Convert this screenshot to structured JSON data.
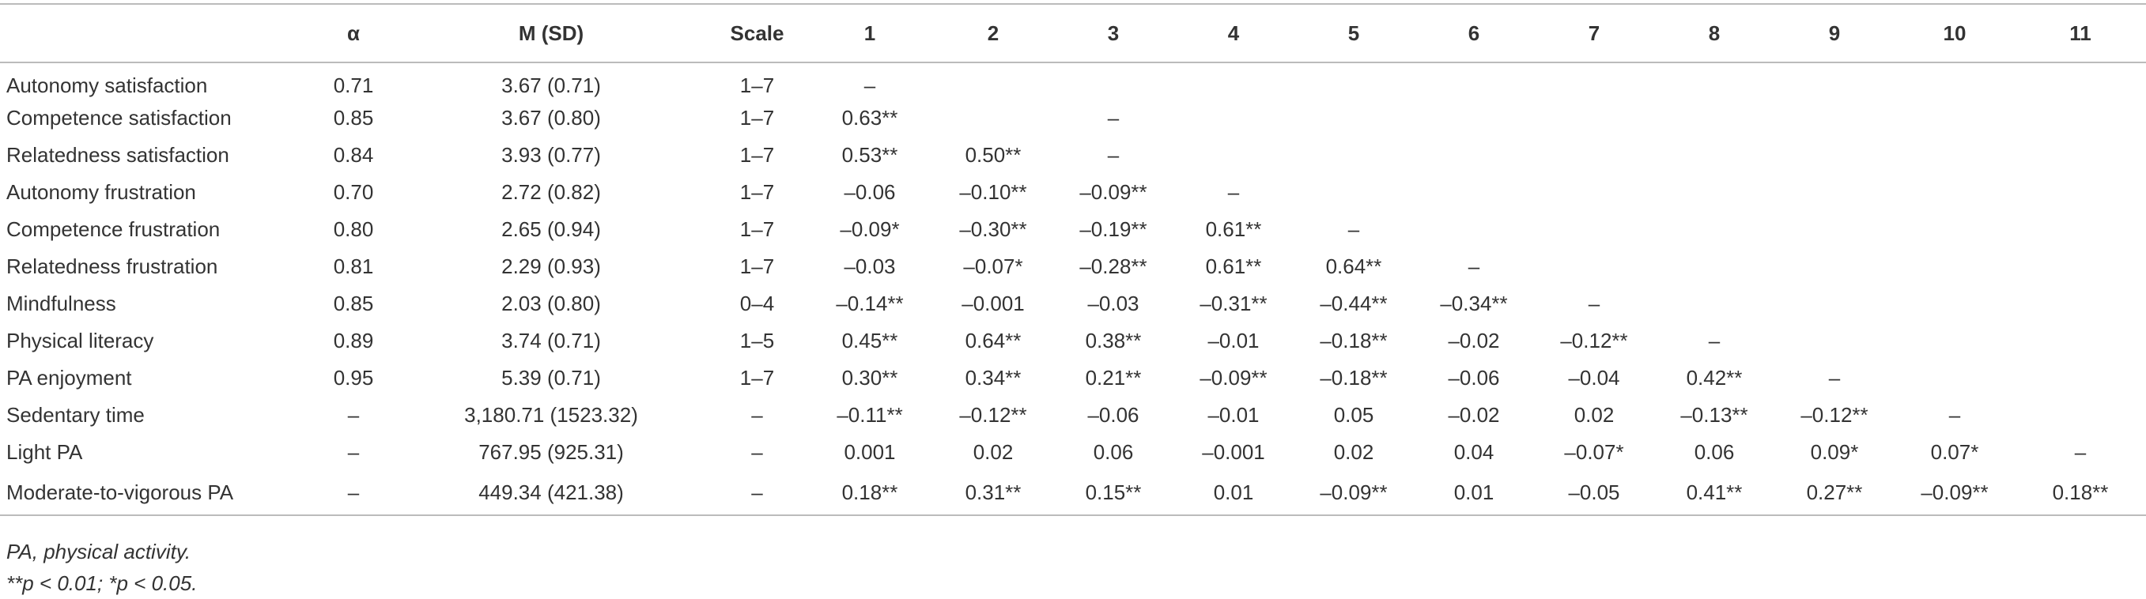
{
  "table": {
    "header": [
      null,
      "α",
      "M (SD)",
      "Scale",
      "1",
      "2",
      "3",
      "4",
      "5",
      "6",
      "7",
      "8",
      "9",
      "10",
      "11"
    ],
    "rows": [
      [
        "Autonomy satisfaction",
        "0.71",
        "3.67 (0.71)",
        "1–7",
        "–",
        null,
        null,
        null,
        null,
        null,
        null,
        null,
        null,
        null,
        null
      ],
      [
        "Competence satisfaction",
        "0.85",
        "3.67 (0.80)",
        "1–7",
        "0.63**",
        null,
        "–",
        null,
        null,
        null,
        null,
        null,
        null,
        null,
        null
      ],
      [
        "Relatedness satisfaction",
        "0.84",
        "3.93 (0.77)",
        "1–7",
        "0.53**",
        "0.50**",
        "–",
        null,
        null,
        null,
        null,
        null,
        null,
        null,
        null
      ],
      [
        "Autonomy frustration",
        "0.70",
        "2.72 (0.82)",
        "1–7",
        "–0.06",
        "–0.10**",
        "–0.09**",
        "–",
        null,
        null,
        null,
        null,
        null,
        null,
        null
      ],
      [
        "Competence frustration",
        "0.80",
        "2.65 (0.94)",
        "1–7",
        "–0.09*",
        "–0.30**",
        "–0.19**",
        "0.61**",
        "–",
        null,
        null,
        null,
        null,
        null,
        null
      ],
      [
        "Relatedness frustration",
        "0.81",
        "2.29 (0.93)",
        "1–7",
        "–0.03",
        "–0.07*",
        "–0.28**",
        "0.61**",
        "0.64**",
        "–",
        null,
        null,
        null,
        null,
        null
      ],
      [
        "Mindfulness",
        "0.85",
        "2.03 (0.80)",
        "0–4",
        "–0.14**",
        "–0.001",
        "–0.03",
        "–0.31**",
        "–0.44**",
        "–0.34**",
        "–",
        null,
        null,
        null,
        null
      ],
      [
        "Physical literacy",
        "0.89",
        "3.74 (0.71)",
        "1–5",
        "0.45**",
        "0.64**",
        "0.38**",
        "–0.01",
        "–0.18**",
        "–0.02",
        "–0.12**",
        "–",
        null,
        null,
        null
      ],
      [
        "PA enjoyment",
        "0.95",
        "5.39 (0.71)",
        "1–7",
        "0.30**",
        "0.34**",
        "0.21**",
        "–0.09**",
        "–0.18**",
        "–0.06",
        "–0.04",
        "0.42**",
        "–",
        null,
        null
      ],
      [
        "Sedentary time",
        "–",
        "3,180.71 (1523.32)",
        "–",
        "–0.11**",
        "–0.12**",
        "–0.06",
        "–0.01",
        "0.05",
        "–0.02",
        "0.02",
        "–0.13**",
        "–0.12**",
        "–",
        null
      ],
      [
        "Light PA",
        "–",
        "767.95 (925.31)",
        "–",
        "0.001",
        "0.02",
        "0.06",
        "–0.001",
        "0.02",
        "0.04",
        "–0.07*",
        "0.06",
        "0.09*",
        "0.07*",
        "–"
      ],
      [
        "Moderate-to-vigorous PA",
        "–",
        "449.34 (421.38)",
        "–",
        "0.18**",
        "0.31**",
        "0.15**",
        "0.01",
        "–0.09**",
        "0.01",
        "–0.05",
        "0.41**",
        "0.27**",
        "–0.09**",
        "0.18**"
      ]
    ]
  },
  "notes": [
    "PA, physical activity.",
    "**p < 0.01; *p < 0.05."
  ]
}
